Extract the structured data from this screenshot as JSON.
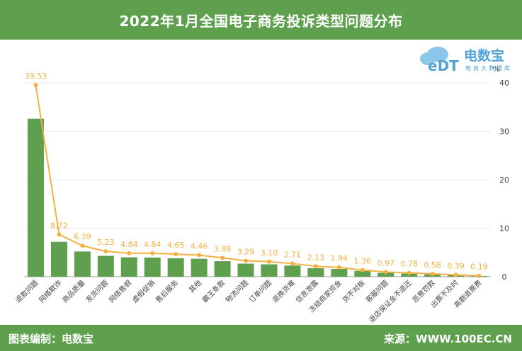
{
  "header": {
    "title": "2022年1月全国电子商务投诉类型问题分布"
  },
  "footer": {
    "left": "图表编制：电数宝",
    "right": "来源：WWW.100EC.CN"
  },
  "logo": {
    "text": "电数宝",
    "subtext": "电商大数据库",
    "badge": "eDT",
    "color": "#4fa3d8"
  },
  "colors": {
    "bar": "#5fa04e",
    "line": "#f5b041",
    "header": "#5fa04e"
  },
  "chart_data": {
    "type": "bar",
    "title": "",
    "ylabel": "%",
    "ylim": [
      0,
      40
    ],
    "yticks": [
      0,
      10,
      20,
      30,
      40
    ],
    "axis_position": "right",
    "categories": [
      "退款问题",
      "网络欺诈",
      "商品质量",
      "发货问题",
      "网络售假",
      "虚假促销",
      "售后服务",
      "其他",
      "霸王条款",
      "物流问题",
      "订单问题",
      "退换货难",
      "信息泄露",
      "冻结商家资金",
      "货不对板",
      "客服问题",
      "退店保证金不退还",
      "恶意罚款",
      "出票不及时",
      "高额退票费"
    ],
    "series": [
      {
        "type": "bar",
        "values": [
          32.6,
          7.2,
          5.2,
          4.3,
          4.0,
          3.95,
          3.8,
          3.7,
          3.2,
          2.7,
          2.55,
          2.3,
          1.75,
          1.6,
          1.2,
          0.8,
          0.65,
          0.48,
          0.32,
          0.16
        ]
      },
      {
        "type": "line",
        "values": [
          39.53,
          8.72,
          6.39,
          5.23,
          4.84,
          4.84,
          4.65,
          4.46,
          3.88,
          3.29,
          3.1,
          2.71,
          2.13,
          1.94,
          1.36,
          0.97,
          0.78,
          0.58,
          0.39,
          0.19
        ]
      }
    ],
    "data_labels": [
      "39.53",
      "8.72",
      "6.39",
      "5.23",
      "4.84",
      "4.84",
      "4.65",
      "4.46",
      "3.88",
      "3.29",
      "3.10",
      "2.71",
      "2.13",
      "1.94",
      "1.36",
      "0.97",
      "0.78",
      "0.58",
      "0.39",
      "0.19"
    ]
  }
}
